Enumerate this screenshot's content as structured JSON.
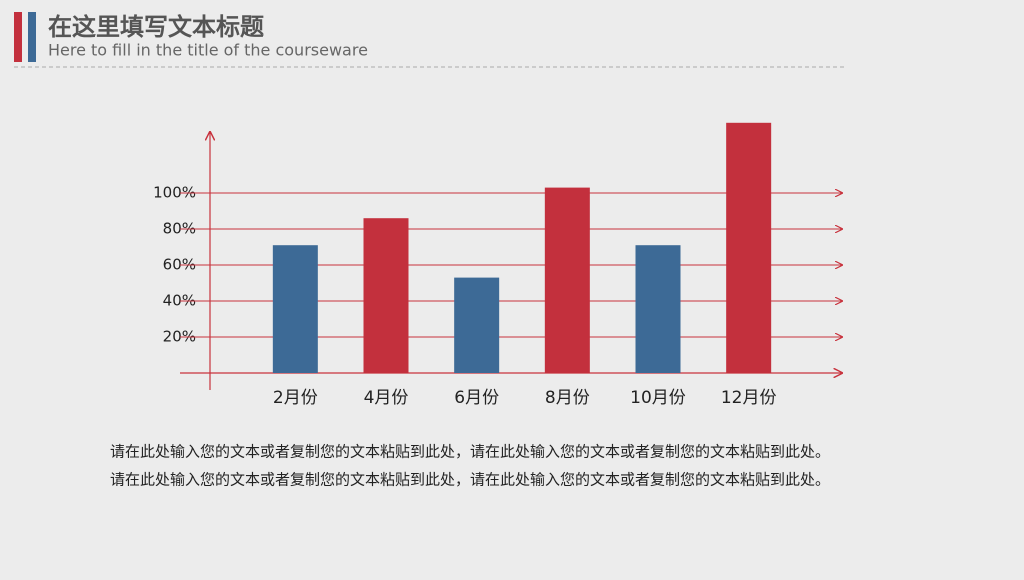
{
  "header": {
    "title": "在这里填写文本标题",
    "subtitle": "Here to fill in the title of the courseware"
  },
  "chart_data": {
    "type": "bar",
    "categories": [
      "2月份",
      "4月份",
      "6月份",
      "8月份",
      "10月份",
      "12月份"
    ],
    "values": [
      71,
      86,
      53,
      103,
      71,
      139
    ],
    "colors": [
      "#3d6a96",
      "#c3303d",
      "#3d6a96",
      "#c3303d",
      "#3d6a96",
      "#c3303d"
    ],
    "ylim": [
      0,
      140
    ],
    "yticks": [
      {
        "value": 20,
        "label": "20%"
      },
      {
        "value": 40,
        "label": "40%"
      },
      {
        "value": 60,
        "label": "60%"
      },
      {
        "value": 80,
        "label": "80%"
      },
      {
        "value": 100,
        "label": "100%"
      }
    ],
    "grid": true,
    "grid_color": "#c8323d"
  },
  "body": {
    "lines": [
      "请在此处输入您的文本或者复制您的文本粘贴到此处，请在此处输入您的文本或者复制您的文本粘贴到此处。",
      "请在此处输入您的文本或者复制您的文本粘贴到此处，请在此处输入您的文本或者复制您的文本粘贴到此处。"
    ]
  }
}
